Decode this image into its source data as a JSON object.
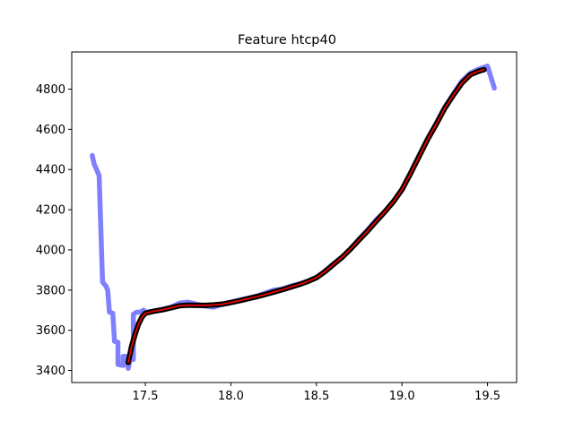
{
  "chart_data": {
    "type": "line",
    "title": "Feature htcp40",
    "xlabel": "",
    "ylabel": "",
    "xlim": [
      17.07,
      19.67
    ],
    "ylim": [
      3340,
      4985
    ],
    "x_ticks": [
      17.5,
      18.0,
      18.5,
      19.0,
      19.5
    ],
    "x_tick_labels": [
      "17.5",
      "18.0",
      "18.5",
      "19.0",
      "19.5"
    ],
    "y_ticks": [
      3400,
      3600,
      3800,
      4000,
      4200,
      4400,
      4600,
      4800
    ],
    "y_tick_labels": [
      "3400",
      "3600",
      "3800",
      "4000",
      "4200",
      "4400",
      "4600",
      "4800"
    ],
    "grid": false,
    "legend": "none",
    "series": [
      {
        "role": "raw",
        "color": "#8080ff",
        "points": [
          [
            17.19,
            4470
          ],
          [
            17.2,
            4430
          ],
          [
            17.23,
            4370
          ],
          [
            17.25,
            3840
          ],
          [
            17.27,
            3820
          ],
          [
            17.28,
            3800
          ],
          [
            17.29,
            3690
          ],
          [
            17.31,
            3685
          ],
          [
            17.32,
            3545
          ],
          [
            17.34,
            3540
          ],
          [
            17.34,
            3430
          ],
          [
            17.37,
            3425
          ],
          [
            17.37,
            3470
          ],
          [
            17.39,
            3470
          ],
          [
            17.4,
            3410
          ],
          [
            17.41,
            3450
          ],
          [
            17.43,
            3455
          ],
          [
            17.43,
            3680
          ],
          [
            17.45,
            3690
          ],
          [
            17.47,
            3690
          ],
          [
            17.49,
            3700
          ],
          [
            17.5,
            3690
          ],
          [
            17.55,
            3695
          ],
          [
            17.6,
            3705
          ],
          [
            17.65,
            3715
          ],
          [
            17.7,
            3735
          ],
          [
            17.75,
            3740
          ],
          [
            17.8,
            3730
          ],
          [
            17.85,
            3720
          ],
          [
            17.9,
            3715
          ],
          [
            17.95,
            3730
          ],
          [
            18.0,
            3740
          ],
          [
            18.05,
            3750
          ],
          [
            18.1,
            3760
          ],
          [
            18.15,
            3770
          ],
          [
            18.2,
            3785
          ],
          [
            18.25,
            3800
          ],
          [
            18.3,
            3805
          ],
          [
            18.35,
            3820
          ],
          [
            18.4,
            3830
          ],
          [
            18.45,
            3845
          ],
          [
            18.5,
            3860
          ],
          [
            18.55,
            3895
          ],
          [
            18.6,
            3930
          ],
          [
            18.65,
            3965
          ],
          [
            18.7,
            4005
          ],
          [
            18.75,
            4055
          ],
          [
            18.8,
            4100
          ],
          [
            18.85,
            4150
          ],
          [
            18.9,
            4190
          ],
          [
            18.95,
            4240
          ],
          [
            19.0,
            4300
          ],
          [
            19.05,
            4385
          ],
          [
            19.1,
            4470
          ],
          [
            19.15,
            4555
          ],
          [
            19.2,
            4630
          ],
          [
            19.25,
            4710
          ],
          [
            19.3,
            4775
          ],
          [
            19.35,
            4840
          ],
          [
            19.4,
            4880
          ],
          [
            19.45,
            4900
          ],
          [
            19.5,
            4915
          ],
          [
            19.52,
            4860
          ],
          [
            19.54,
            4805
          ]
        ]
      },
      {
        "role": "smoothed",
        "color": "#000000",
        "points": [
          [
            17.4,
            3440
          ],
          [
            17.42,
            3520
          ],
          [
            17.44,
            3580
          ],
          [
            17.46,
            3630
          ],
          [
            17.48,
            3665
          ],
          [
            17.5,
            3685
          ],
          [
            17.55,
            3695
          ],
          [
            17.6,
            3702
          ],
          [
            17.65,
            3712
          ],
          [
            17.7,
            3722
          ],
          [
            17.75,
            3725
          ],
          [
            17.8,
            3724
          ],
          [
            17.85,
            3724
          ],
          [
            17.9,
            3726
          ],
          [
            17.95,
            3730
          ],
          [
            18.0,
            3738
          ],
          [
            18.05,
            3747
          ],
          [
            18.1,
            3757
          ],
          [
            18.15,
            3767
          ],
          [
            18.2,
            3778
          ],
          [
            18.25,
            3790
          ],
          [
            18.3,
            3802
          ],
          [
            18.35,
            3815
          ],
          [
            18.4,
            3828
          ],
          [
            18.45,
            3843
          ],
          [
            18.5,
            3862
          ],
          [
            18.55,
            3892
          ],
          [
            18.6,
            3928
          ],
          [
            18.65,
            3963
          ],
          [
            18.7,
            4005
          ],
          [
            18.75,
            4050
          ],
          [
            18.8,
            4095
          ],
          [
            18.85,
            4143
          ],
          [
            18.9,
            4190
          ],
          [
            18.95,
            4240
          ],
          [
            19.0,
            4300
          ],
          [
            19.05,
            4380
          ],
          [
            19.1,
            4465
          ],
          [
            19.15,
            4550
          ],
          [
            19.2,
            4625
          ],
          [
            19.25,
            4705
          ],
          [
            19.3,
            4770
          ],
          [
            19.35,
            4830
          ],
          [
            19.4,
            4872
          ],
          [
            19.45,
            4890
          ],
          [
            19.48,
            4897
          ]
        ]
      },
      {
        "role": "fit",
        "color": "#ff0000",
        "points": [
          [
            17.4,
            3440
          ],
          [
            17.42,
            3520
          ],
          [
            17.44,
            3580
          ],
          [
            17.46,
            3630
          ],
          [
            17.48,
            3665
          ],
          [
            17.5,
            3685
          ],
          [
            17.55,
            3695
          ],
          [
            17.6,
            3702
          ],
          [
            17.65,
            3712
          ],
          [
            17.7,
            3722
          ],
          [
            17.75,
            3725
          ],
          [
            17.8,
            3724
          ],
          [
            17.85,
            3724
          ],
          [
            17.9,
            3726
          ],
          [
            17.95,
            3730
          ],
          [
            18.0,
            3738
          ],
          [
            18.05,
            3747
          ],
          [
            18.1,
            3757
          ],
          [
            18.15,
            3767
          ],
          [
            18.2,
            3778
          ],
          [
            18.25,
            3790
          ],
          [
            18.3,
            3802
          ],
          [
            18.35,
            3815
          ],
          [
            18.4,
            3828
          ],
          [
            18.45,
            3843
          ],
          [
            18.5,
            3862
          ],
          [
            18.55,
            3892
          ],
          [
            18.6,
            3928
          ],
          [
            18.65,
            3963
          ],
          [
            18.7,
            4005
          ],
          [
            18.75,
            4050
          ],
          [
            18.8,
            4095
          ],
          [
            18.85,
            4143
          ],
          [
            18.9,
            4190
          ],
          [
            18.95,
            4240
          ],
          [
            19.0,
            4300
          ],
          [
            19.05,
            4380
          ],
          [
            19.1,
            4465
          ],
          [
            19.15,
            4550
          ],
          [
            19.2,
            4625
          ],
          [
            19.25,
            4705
          ],
          [
            19.3,
            4770
          ],
          [
            19.35,
            4830
          ],
          [
            19.4,
            4872
          ],
          [
            19.45,
            4890
          ],
          [
            19.48,
            4897
          ]
        ]
      }
    ]
  }
}
